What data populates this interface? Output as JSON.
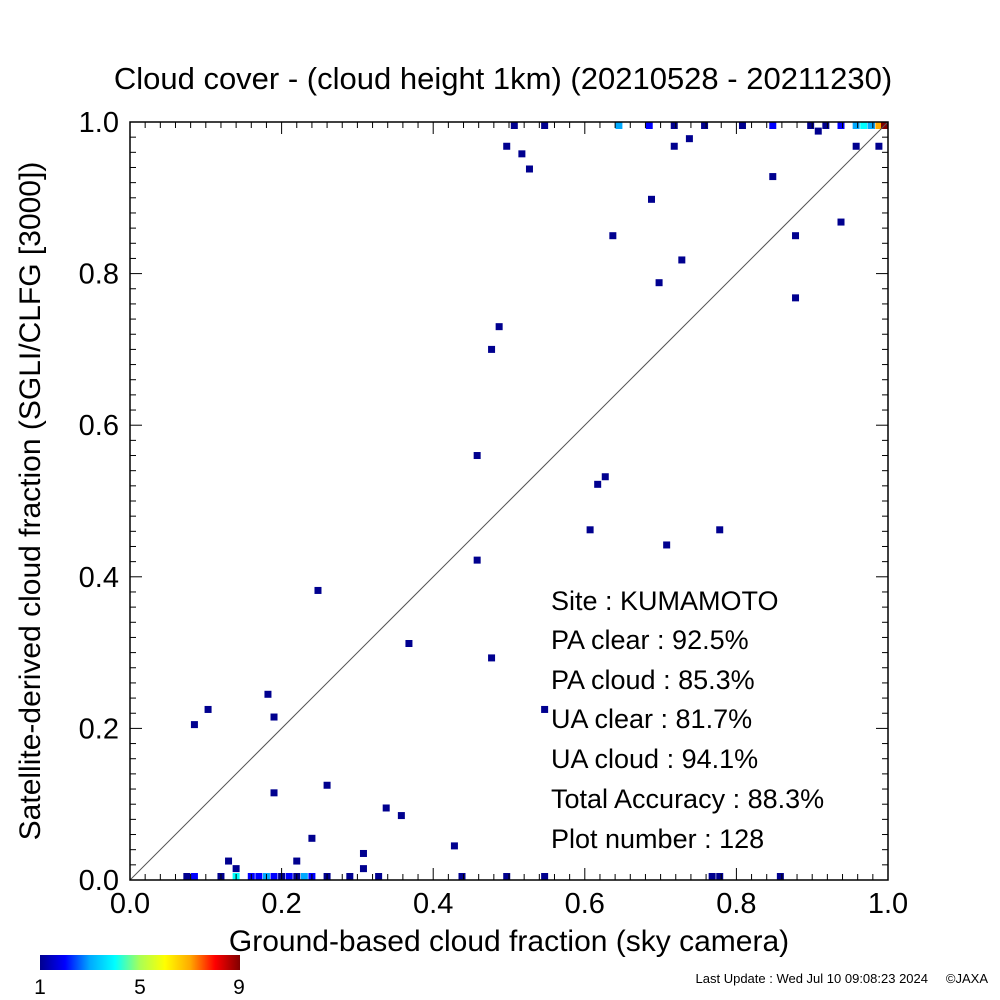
{
  "chart_data": {
    "type": "scatter",
    "title": "Cloud cover - (cloud height 1km)  (20210528 - 20211230)",
    "xlabel": "Ground-based cloud fraction (sky camera)",
    "ylabel": "Satellite-derived cloud fraction (SGLI/CLFG [3000])",
    "xlim": [
      0.0,
      1.0
    ],
    "ylim": [
      0.0,
      1.0
    ],
    "x_ticks": [
      "0.0",
      "0.2",
      "0.4",
      "0.6",
      "0.8",
      "1.0"
    ],
    "y_ticks": [
      "0.0",
      "0.2",
      "0.4",
      "0.6",
      "0.8",
      "1.0"
    ],
    "grid": false,
    "reference_line": "y = x",
    "stats": {
      "site": "Site : KUMAMOTO",
      "pa_clear": "PA clear :  92.5%",
      "pa_cloud": "PA cloud :  85.3%",
      "ua_clear": "UA clear :  81.7%",
      "ua_cloud": "UA cloud :  94.1%",
      "total_accuracy": "Total Accuracy :  88.3%",
      "plot_number": "Plot number :       128"
    },
    "colorbar": {
      "min_label": "1",
      "mid_label": "5",
      "max_label": "9",
      "colors": [
        "#00008f",
        "#0000ff",
        "#00aaff",
        "#00ffff",
        "#aaff55",
        "#ffff00",
        "#ffaa00",
        "#ff0000",
        "#800000"
      ]
    },
    "points": [
      {
        "x": 0.085,
        "y": 0.205,
        "c": 1
      },
      {
        "x": 0.103,
        "y": 0.225,
        "c": 1
      },
      {
        "x": 0.182,
        "y": 0.245,
        "c": 1
      },
      {
        "x": 0.19,
        "y": 0.215,
        "c": 1
      },
      {
        "x": 0.19,
        "y": 0.115,
        "c": 1
      },
      {
        "x": 0.248,
        "y": 0.382,
        "c": 1
      },
      {
        "x": 0.26,
        "y": 0.125,
        "c": 1
      },
      {
        "x": 0.24,
        "y": 0.055,
        "c": 1
      },
      {
        "x": 0.22,
        "y": 0.025,
        "c": 1
      },
      {
        "x": 0.13,
        "y": 0.025,
        "c": 1
      },
      {
        "x": 0.14,
        "y": 0.015,
        "c": 1
      },
      {
        "x": 0.308,
        "y": 0.035,
        "c": 1
      },
      {
        "x": 0.308,
        "y": 0.015,
        "c": 1
      },
      {
        "x": 0.338,
        "y": 0.095,
        "c": 1
      },
      {
        "x": 0.358,
        "y": 0.085,
        "c": 1
      },
      {
        "x": 0.368,
        "y": 0.312,
        "c": 1
      },
      {
        "x": 0.428,
        "y": 0.045,
        "c": 1
      },
      {
        "x": 0.458,
        "y": 0.56,
        "c": 1
      },
      {
        "x": 0.458,
        "y": 0.422,
        "c": 1
      },
      {
        "x": 0.477,
        "y": 0.7,
        "c": 1
      },
      {
        "x": 0.477,
        "y": 0.293,
        "c": 1
      },
      {
        "x": 0.487,
        "y": 0.73,
        "c": 1
      },
      {
        "x": 0.497,
        "y": 0.968,
        "c": 1
      },
      {
        "x": 0.507,
        "y": 0.998,
        "c": 1
      },
      {
        "x": 0.517,
        "y": 0.958,
        "c": 1
      },
      {
        "x": 0.527,
        "y": 0.938,
        "c": 1
      },
      {
        "x": 0.547,
        "y": 0.998,
        "c": 1
      },
      {
        "x": 0.547,
        "y": 0.225,
        "c": 1
      },
      {
        "x": 0.607,
        "y": 0.462,
        "c": 1
      },
      {
        "x": 0.617,
        "y": 0.522,
        "c": 1
      },
      {
        "x": 0.627,
        "y": 0.532,
        "c": 1
      },
      {
        "x": 0.637,
        "y": 0.85,
        "c": 1
      },
      {
        "x": 0.688,
        "y": 0.898,
        "c": 1
      },
      {
        "x": 0.698,
        "y": 0.788,
        "c": 1
      },
      {
        "x": 0.708,
        "y": 0.442,
        "c": 1
      },
      {
        "x": 0.718,
        "y": 0.968,
        "c": 1
      },
      {
        "x": 0.718,
        "y": 0.998,
        "c": 1
      },
      {
        "x": 0.728,
        "y": 0.818,
        "c": 1
      },
      {
        "x": 0.738,
        "y": 0.978,
        "c": 1
      },
      {
        "x": 0.758,
        "y": 0.998,
        "c": 1
      },
      {
        "x": 0.778,
        "y": 0.462,
        "c": 1
      },
      {
        "x": 0.808,
        "y": 0.998,
        "c": 1
      },
      {
        "x": 0.848,
        "y": 0.928,
        "c": 1
      },
      {
        "x": 0.878,
        "y": 0.85,
        "c": 1
      },
      {
        "x": 0.878,
        "y": 0.768,
        "c": 1
      },
      {
        "x": 0.898,
        "y": 0.998,
        "c": 1
      },
      {
        "x": 0.908,
        "y": 0.988,
        "c": 1
      },
      {
        "x": 0.918,
        "y": 0.998,
        "c": 1
      },
      {
        "x": 0.938,
        "y": 0.868,
        "c": 1
      },
      {
        "x": 0.958,
        "y": 0.968,
        "c": 1
      },
      {
        "x": 0.978,
        "y": 0.998,
        "c": 1
      },
      {
        "x": 0.988,
        "y": 0.968,
        "c": 1
      },
      {
        "x": 0.685,
        "y": 0.998,
        "c": 2
      },
      {
        "x": 0.645,
        "y": 0.998,
        "c": 3
      },
      {
        "x": 0.848,
        "y": 0.998,
        "c": 2
      },
      {
        "x": 0.938,
        "y": 0.998,
        "c": 2
      },
      {
        "x": 0.958,
        "y": 0.998,
        "c": 3
      },
      {
        "x": 0.968,
        "y": 0.998,
        "c": 4
      },
      {
        "x": 0.978,
        "y": 0.998,
        "c": 3
      },
      {
        "x": 0.988,
        "y": 0.998,
        "c": 7
      },
      {
        "x": 0.998,
        "y": 0.998,
        "c": 9
      },
      {
        "x": 0.075,
        "y": 0.003,
        "c": 1
      },
      {
        "x": 0.085,
        "y": 0.003,
        "c": 2
      },
      {
        "x": 0.12,
        "y": 0.003,
        "c": 1
      },
      {
        "x": 0.14,
        "y": 0.003,
        "c": 4
      },
      {
        "x": 0.16,
        "y": 0.003,
        "c": 2
      },
      {
        "x": 0.17,
        "y": 0.003,
        "c": 2
      },
      {
        "x": 0.18,
        "y": 0.003,
        "c": 3
      },
      {
        "x": 0.19,
        "y": 0.003,
        "c": 2
      },
      {
        "x": 0.2,
        "y": 0.003,
        "c": 1
      },
      {
        "x": 0.21,
        "y": 0.003,
        "c": 2
      },
      {
        "x": 0.22,
        "y": 0.003,
        "c": 1
      },
      {
        "x": 0.23,
        "y": 0.003,
        "c": 3
      },
      {
        "x": 0.24,
        "y": 0.003,
        "c": 2
      },
      {
        "x": 0.26,
        "y": 0.003,
        "c": 1
      },
      {
        "x": 0.29,
        "y": 0.003,
        "c": 1
      },
      {
        "x": 0.328,
        "y": 0.003,
        "c": 1
      },
      {
        "x": 0.438,
        "y": 0.003,
        "c": 1
      },
      {
        "x": 0.497,
        "y": 0.003,
        "c": 1
      },
      {
        "x": 0.547,
        "y": 0.003,
        "c": 1
      },
      {
        "x": 0.768,
        "y": 0.003,
        "c": 1
      },
      {
        "x": 0.778,
        "y": 0.003,
        "c": 1
      },
      {
        "x": 0.858,
        "y": 0.003,
        "c": 1
      }
    ]
  },
  "footer": {
    "last_update": "Last Update : Wed Jul 10 09:08:23 2024",
    "copyright": "©JAXA"
  }
}
